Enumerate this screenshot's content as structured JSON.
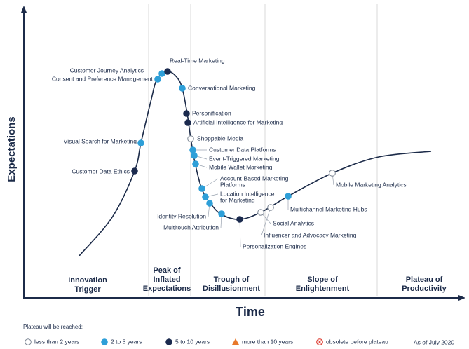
{
  "axes": {
    "y_label": "Expectations",
    "x_label": "Time"
  },
  "phases": [
    [
      "Innovation",
      "Trigger"
    ],
    [
      "Peak of",
      "Inflated",
      "Expectations"
    ],
    [
      "Trough of",
      "Disillusionment"
    ],
    [
      "Slope of",
      "Enlightenment"
    ],
    [
      "Plateau of",
      "Productivity"
    ]
  ],
  "nodes": [
    {
      "label": [
        "Customer Journey Analytics"
      ],
      "plateau": "2 to 5 years"
    },
    {
      "label": [
        "Consent and Preference Management"
      ],
      "plateau": "2 to 5 years"
    },
    {
      "label": [
        "Real-Time Marketing"
      ],
      "plateau": "5 to 10 years"
    },
    {
      "label": [
        "Conversational Marketing"
      ],
      "plateau": "2 to 5 years"
    },
    {
      "label": [
        "Personification"
      ],
      "plateau": "5 to 10 years"
    },
    {
      "label": [
        "Artificial Intelligence for Marketing"
      ],
      "plateau": "5 to 10 years"
    },
    {
      "label": [
        "Shoppable Media"
      ],
      "plateau": "less than 2 years"
    },
    {
      "label": [
        "Customer Data Platforms"
      ],
      "plateau": "2 to 5 years"
    },
    {
      "label": [
        "Event-Triggered Marketing"
      ],
      "plateau": "2 to 5 years"
    },
    {
      "label": [
        "Mobile Wallet Marketing"
      ],
      "plateau": "2 to 5 years"
    },
    {
      "label": [
        "Visual Search for Marketing"
      ],
      "plateau": "2 to 5 years"
    },
    {
      "label": [
        "Customer Data Ethics"
      ],
      "plateau": "5 to 10 years"
    },
    {
      "label": [
        "Account-Based Marketing",
        "Platforms"
      ],
      "plateau": "2 to 5 years"
    },
    {
      "label": [
        "Location Intelligence",
        "for Marketing"
      ],
      "plateau": "2 to 5 years"
    },
    {
      "label": [
        "Identity Resolution"
      ],
      "plateau": "2 to 5 years"
    },
    {
      "label": [
        "Multitouch Attribution"
      ],
      "plateau": "2 to 5 years"
    },
    {
      "label": [
        "Personalization Engines"
      ],
      "plateau": "5 to 10 years"
    },
    {
      "label": [
        "Social Analytics"
      ],
      "plateau": "less than 2 years"
    },
    {
      "label": [
        "Influencer and Advocacy Marketing"
      ],
      "plateau": "less than 2 years"
    },
    {
      "label": [
        "Multichannel Marketing Hubs"
      ],
      "plateau": "2 to 5 years"
    },
    {
      "label": [
        "Mobile Marketing Analytics"
      ],
      "plateau": "less than 2 years"
    }
  ],
  "legend": {
    "title": "Plateau will be reached:",
    "items": [
      {
        "label": "less than 2 years",
        "color": "#ffffff"
      },
      {
        "label": "2 to 5 years",
        "color": "#2e9fd8"
      },
      {
        "label": "5 to 10 years",
        "color": "#1b2a4e"
      },
      {
        "label": "more than 10 years",
        "color": "#e8782a"
      },
      {
        "label": "obsolete before plateau",
        "color": "#e0453a"
      }
    ]
  },
  "as_of": "As of July 2020"
}
